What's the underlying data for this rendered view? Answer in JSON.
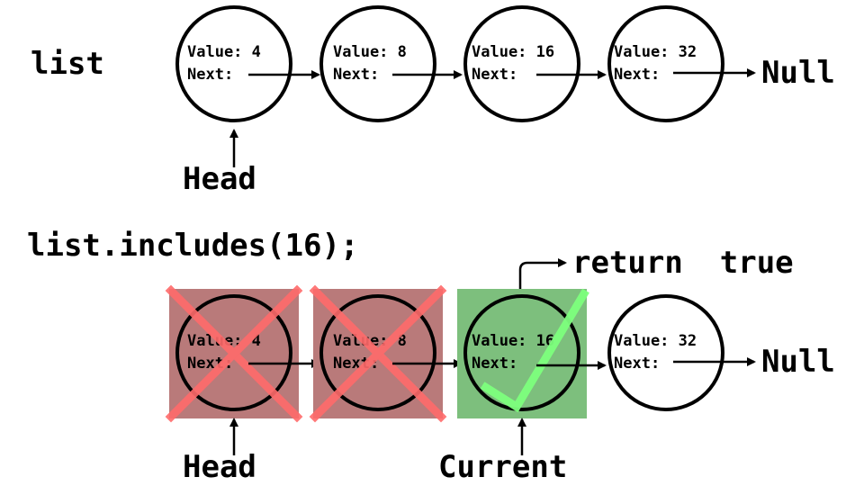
{
  "top": {
    "label": "list",
    "nodes": [
      {
        "value_text": "Value: 4",
        "next_text": "Next:"
      },
      {
        "value_text": "Value: 8",
        "next_text": "Next:"
      },
      {
        "value_text": "Value: 16",
        "next_text": "Next:"
      },
      {
        "value_text": "Value: 32",
        "next_text": "Next:"
      }
    ],
    "null_text": "Null",
    "head_text": "Head"
  },
  "bottom": {
    "label": "list.includes(16);",
    "return_text": "return  true",
    "nodes": [
      {
        "value_text": "Value: 4",
        "next_text": "Next:",
        "status": "rejected"
      },
      {
        "value_text": "Value: 8",
        "next_text": "Next:",
        "status": "rejected"
      },
      {
        "value_text": "Value: 16",
        "next_text": "Next:",
        "status": "match"
      },
      {
        "value_text": "Value: 32",
        "next_text": "Next:",
        "status": "unvisited"
      }
    ],
    "null_text": "Null",
    "head_text": "Head",
    "current_text": "Current"
  },
  "colors": {
    "rejected_fill": "#b97a7a",
    "cross_stroke": "#ff6b6b",
    "match_fill": "#7dbf7d",
    "check_stroke": "#7dff7d",
    "ink": "#000000"
  }
}
